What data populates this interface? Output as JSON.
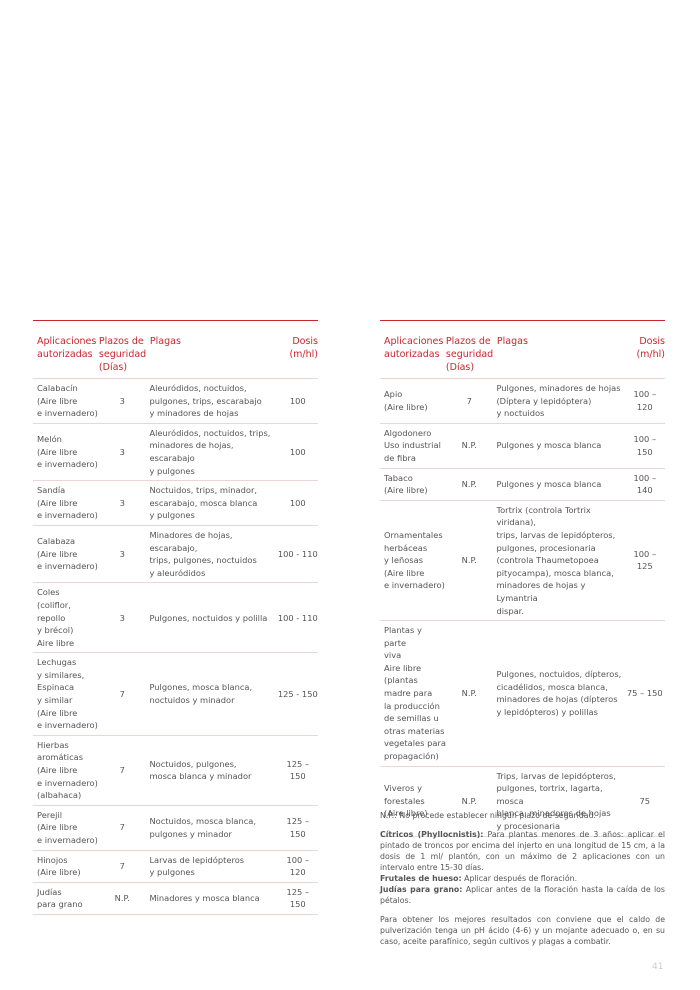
{
  "left_table": {
    "headers": [
      [
        "Aplicaciones",
        "autorizadas"
      ],
      [
        "Plazos de",
        "seguridad",
        "(Días)"
      ],
      [
        "Plagas"
      ],
      [
        "Dosis",
        "(m/hl)"
      ]
    ],
    "rows": [
      [
        [
          "Calabacín",
          "(Aire libre",
          "e invernadero)"
        ],
        [
          "3"
        ],
        [
          "Aleuródidos, noctuidos,",
          "pulgones, trips, escarabajo",
          "y minadores de hojas"
        ],
        [
          "100"
        ]
      ],
      [
        [
          "Melón",
          "(Aire libre",
          "e invernadero)"
        ],
        [
          "3"
        ],
        [
          "Aleuródidos, noctuidos, trips,",
          "minadores de hojas, escarabajo",
          "y pulgones"
        ],
        [
          "100"
        ]
      ],
      [
        [
          "Sandía",
          "(Aire libre",
          "e invernadero)"
        ],
        [
          "3"
        ],
        [
          "Noctuidos, trips, minador,",
          "escarabajo, mosca blanca",
          "y pulgones"
        ],
        [
          "100"
        ]
      ],
      [
        [
          "Calabaza",
          "(Aire libre",
          "e invernadero)"
        ],
        [
          "3"
        ],
        [
          "Minadores de hojas, escarabajo,",
          "trips, pulgones, noctuidos",
          "y aleuródidos"
        ],
        [
          "100 - 110"
        ]
      ],
      [
        [
          "Coles",
          "(coliflor, repollo",
          "y brécol)",
          "Aire libre"
        ],
        [
          "3"
        ],
        [
          "Pulgones, noctuidos y polilla"
        ],
        [
          "100 - 110"
        ]
      ],
      [
        [
          "Lechugas",
          "y similares,",
          "Espinaca",
          "y similar",
          "(Aire libre",
          "e invernadero)"
        ],
        [
          "7"
        ],
        [
          "Pulgones, mosca blanca,",
          "noctuidos y minador"
        ],
        [
          "125 - 150"
        ]
      ],
      [
        [
          "Hierbas",
          "aromáticas",
          "(Aire libre",
          "e invernadero)",
          "(albahaca)"
        ],
        [
          "7"
        ],
        [
          "Noctuidos, pulgones,",
          "mosca blanca y minador"
        ],
        [
          "125 – 150"
        ]
      ],
      [
        [
          "Perejil",
          "(Aire libre",
          "e invernadero)"
        ],
        [
          "7"
        ],
        [
          "Noctuidos, mosca blanca,",
          "pulgones y minador"
        ],
        [
          "125 – 150"
        ]
      ],
      [
        [
          "Hinojos",
          "(Aire libre)"
        ],
        [
          "7"
        ],
        [
          "Larvas de lepidópteros",
          "y pulgones"
        ],
        [
          "100 – 120"
        ]
      ],
      [
        [
          "Judías",
          "para grano"
        ],
        [
          "N.P."
        ],
        [
          "Minadores y mosca blanca"
        ],
        [
          "125 – 150"
        ]
      ]
    ]
  },
  "right_table": {
    "headers": [
      [
        "Aplicaciones",
        "autorizadas"
      ],
      [
        "Plazos de",
        "seguridad",
        "(Días)"
      ],
      [
        "Plagas"
      ],
      [
        "Dosis",
        "(m/hl)"
      ]
    ],
    "rows": [
      [
        [
          "Apio",
          "(Aire libre)"
        ],
        [
          "7"
        ],
        [
          "Pulgones, minadores de hojas",
          "(Díptera y lepidóptera)",
          "y noctuidos"
        ],
        [
          "100 – 120"
        ]
      ],
      [
        [
          "Algodonero",
          "Uso industrial",
          "de fibra"
        ],
        [
          "N.P."
        ],
        [
          "Pulgones y mosca blanca"
        ],
        [
          "100 – 150"
        ]
      ],
      [
        [
          "Tabaco",
          "(Aire libre)"
        ],
        [
          "N.P."
        ],
        [
          "Pulgones y mosca blanca"
        ],
        [
          "100 – 140"
        ]
      ],
      [
        [
          "Ornamentales",
          "herbáceas",
          "y leñosas",
          "(Aire libre",
          "e invernadero)"
        ],
        [
          "N.P."
        ],
        [
          "Tortrix (controla Tortrix viridana),",
          "trips, larvas de lepidópteros,",
          "pulgones, procesionaria",
          "(controla Thaumetopoea",
          "pityocampa), mosca blanca,",
          "minadores de hojas y Lymantria",
          "dispar."
        ],
        [
          "100 – 125"
        ]
      ],
      [
        [
          "Plantas y parte",
          "viva",
          "Aire libre",
          "(plantas",
          "madre para",
          "la producción",
          "de semillas u",
          "otras materias",
          "vegetales para",
          "propagación)"
        ],
        [
          "N.P."
        ],
        [
          "Pulgones, noctuidos, dípteros,",
          "cicadélidos, mosca blanca,",
          "minadores de hojas (dípteros",
          "y lepidópteros) y polillas"
        ],
        [
          "75 – 150"
        ]
      ],
      [
        [
          "Viveros y",
          "forestales",
          "(Aire libre)"
        ],
        [
          "N.P."
        ],
        [
          "Trips, larvas de lepidópteros,",
          "pulgones, tortrix, lagarta, mosca",
          "blanca, minadores de hojas",
          "y procesionaria"
        ],
        [
          "75"
        ]
      ]
    ]
  },
  "notes": {
    "np": "N.P.: No procede establecer ningún plazo de seguridad.",
    "items": [
      {
        "label": "Cítricos (Phyllocnistis):",
        "text": "Para plantas menores de 3 años: aplicar el pintado de troncos por encima del injerto en una longitud de 15 cm, a la dosis de 1 ml/ plantón, con un máximo de 2 aplicaciones con un intervalo entre 15-30 días."
      },
      {
        "label": "Frutales de hueso:",
        "text": "Aplicar después de floración."
      },
      {
        "label": "Judías para grano:",
        "text": "Aplicar antes de la floración hasta la caída de los pétalos."
      }
    ],
    "final": "Para obtener los mejores resultados con conviene que el caldo de pulverización tenga un pH ácido (4-6) y un mojante adecuado o, en su caso, aceite parafínico, según cultivos y plagas a combatir."
  },
  "page_number": "41"
}
